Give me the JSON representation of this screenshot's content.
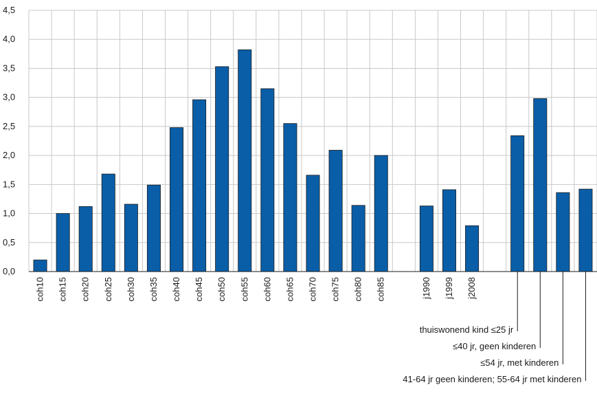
{
  "chart_data": {
    "type": "bar",
    "title": "",
    "xlabel": "",
    "ylabel": "",
    "ylim": [
      0,
      4.5
    ],
    "yticks": [
      "0,0",
      "0,5",
      "1,0",
      "1,5",
      "2,0",
      "2,5",
      "3,0",
      "3,5",
      "4,0",
      "4,5"
    ],
    "grid": true,
    "bar_color": "#0a5ea8",
    "categories": [
      "coh10",
      "coh15",
      "coh20",
      "coh25",
      "coh30",
      "coh35",
      "coh40",
      "coh45",
      "coh50",
      "coh55",
      "coh60",
      "coh65",
      "coh70",
      "coh75",
      "coh80",
      "coh85",
      "",
      "j1990",
      "j1999",
      "j2008",
      "",
      "",
      "",
      "",
      ""
    ],
    "values": [
      0.2,
      1.0,
      1.12,
      1.68,
      1.16,
      1.49,
      2.48,
      2.96,
      3.53,
      3.82,
      3.15,
      2.55,
      1.66,
      2.09,
      1.14,
      2.0,
      null,
      1.13,
      1.41,
      0.79,
      null,
      2.34,
      2.98,
      1.36,
      1.42
    ],
    "callouts": [
      "thuiswonend kind ≤25 jr",
      "≤40 jr, geen kinderen",
      "≤54 jr, met kinderen",
      "41-64 jr geen kinderen; 55-64 jr met kinderen"
    ]
  }
}
